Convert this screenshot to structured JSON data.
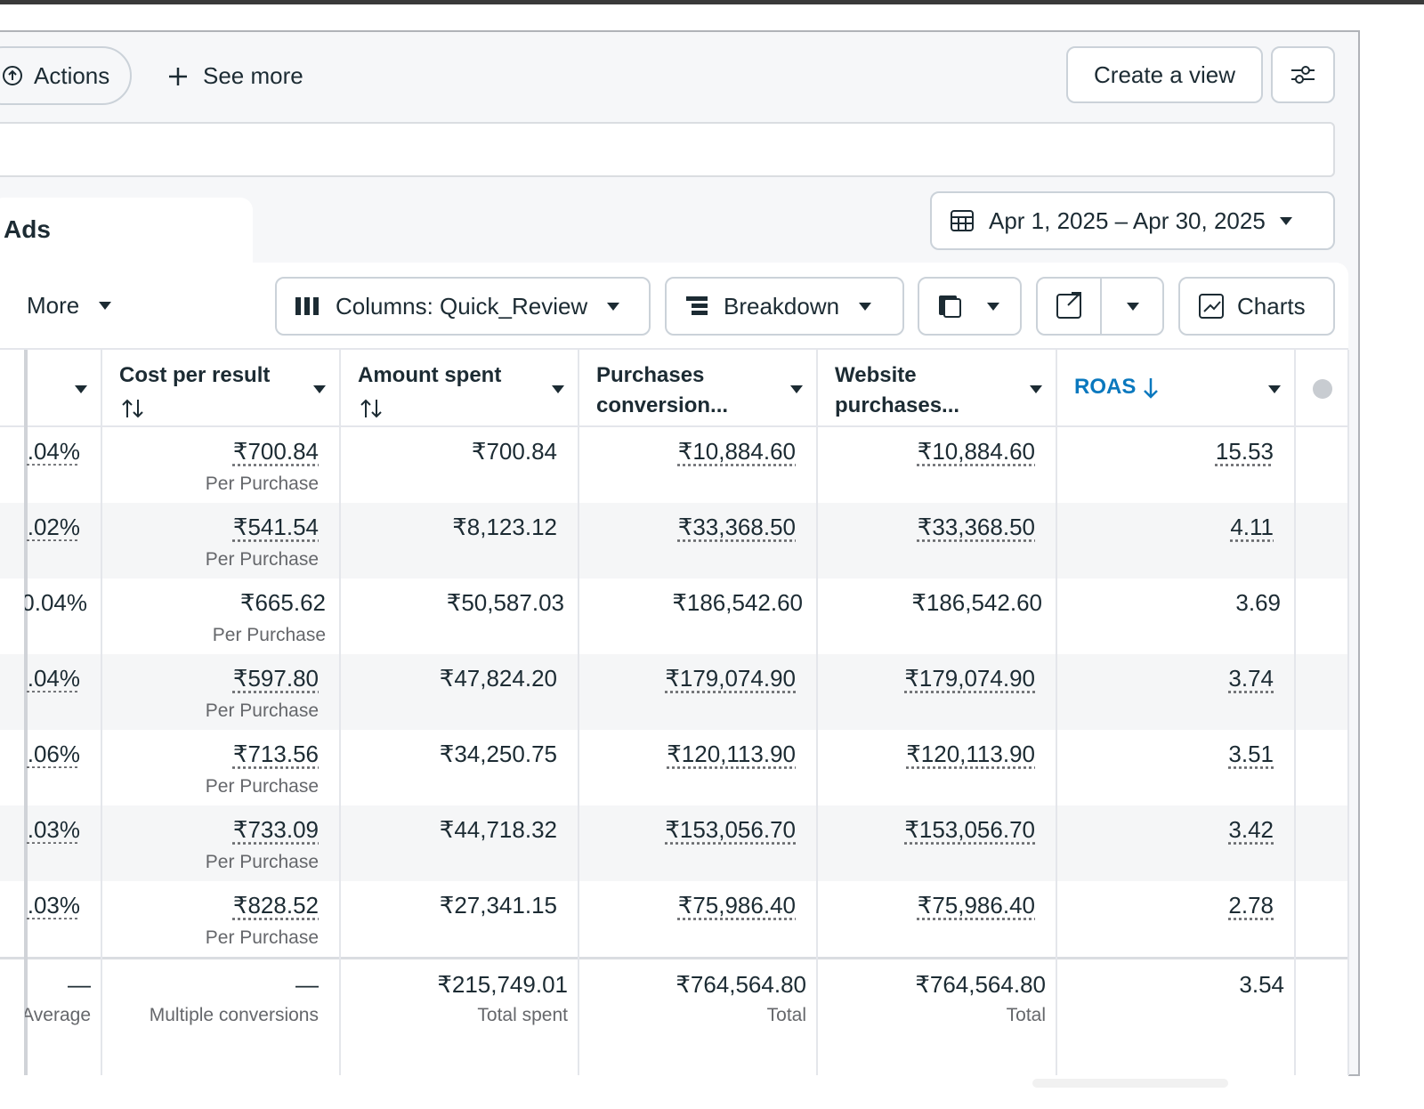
{
  "toolbar": {
    "actions": "Actions",
    "see_more": "See more",
    "create_view": "Create a view"
  },
  "tab": "Ads",
  "date_range": "Apr 1, 2025 – Apr 30, 2025",
  "controls": {
    "more": "More",
    "columns": "Columns: Quick_Review",
    "breakdown": "Breakdown",
    "charts": "Charts"
  },
  "table": {
    "headers": [
      "Cost per result",
      "Amount spent",
      "Purchases conversion...",
      "Website purchases...",
      "ROAS"
    ],
    "rows": [
      {
        "col0": ".04%",
        "cost": "₹700.84",
        "cost_note": "Per Purchase",
        "amount": "₹700.84",
        "purchases": "₹10,884.60",
        "website": "₹10,884.60",
        "roas": "15.53",
        "link": true
      },
      {
        "col0": ".02%",
        "cost": "₹541.54",
        "cost_note": "Per Purchase",
        "amount": "₹8,123.12",
        "purchases": "₹33,368.50",
        "website": "₹33,368.50",
        "roas": "4.11",
        "link": true
      },
      {
        "col0": "0.04%",
        "cost": "₹665.62",
        "cost_note": "Per Purchase",
        "amount": "₹50,587.03",
        "purchases": "₹186,542.60",
        "website": "₹186,542.60",
        "roas": "3.69",
        "link": false
      },
      {
        "col0": ".04%",
        "cost": "₹597.80",
        "cost_note": "Per Purchase",
        "amount": "₹47,824.20",
        "purchases": "₹179,074.90",
        "website": "₹179,074.90",
        "roas": "3.74",
        "link": true
      },
      {
        "col0": ".06%",
        "cost": "₹713.56",
        "cost_note": "Per Purchase",
        "amount": "₹34,250.75",
        "purchases": "₹120,113.90",
        "website": "₹120,113.90",
        "roas": "3.51",
        "link": true
      },
      {
        "col0": ".03%",
        "cost": "₹733.09",
        "cost_note": "Per Purchase",
        "amount": "₹44,718.32",
        "purchases": "₹153,056.70",
        "website": "₹153,056.70",
        "roas": "3.42",
        "link": true
      },
      {
        "col0": ".03%",
        "cost": "₹828.52",
        "cost_note": "Per Purchase",
        "amount": "₹27,341.15",
        "purchases": "₹75,986.40",
        "website": "₹75,986.40",
        "roas": "2.78",
        "link": true
      }
    ],
    "totals": {
      "col0": "—",
      "col0_note": "Average",
      "cost": "—",
      "cost_note": "Multiple conversions",
      "amount": "₹215,749.01",
      "amount_note": "Total spent",
      "purchases": "₹764,564.80",
      "purchases_note": "Total",
      "website": "₹764,564.80",
      "website_note": "Total",
      "roas": "3.54"
    }
  }
}
